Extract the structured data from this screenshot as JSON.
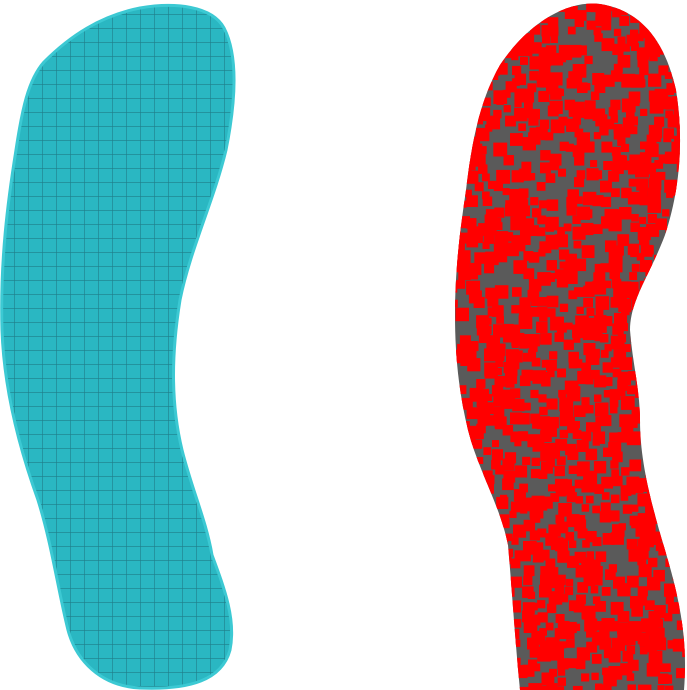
{
  "scene": {
    "shapes": [
      {
        "name": "teal-gridded-footprint",
        "fill": "#2ab7c2",
        "grid_color": "#1f7d88",
        "outline_color": "#3cc9d3"
      },
      {
        "name": "red-dotted-footprint",
        "fill": "#ff0000",
        "background_color": "#5a5a5a"
      }
    ]
  }
}
